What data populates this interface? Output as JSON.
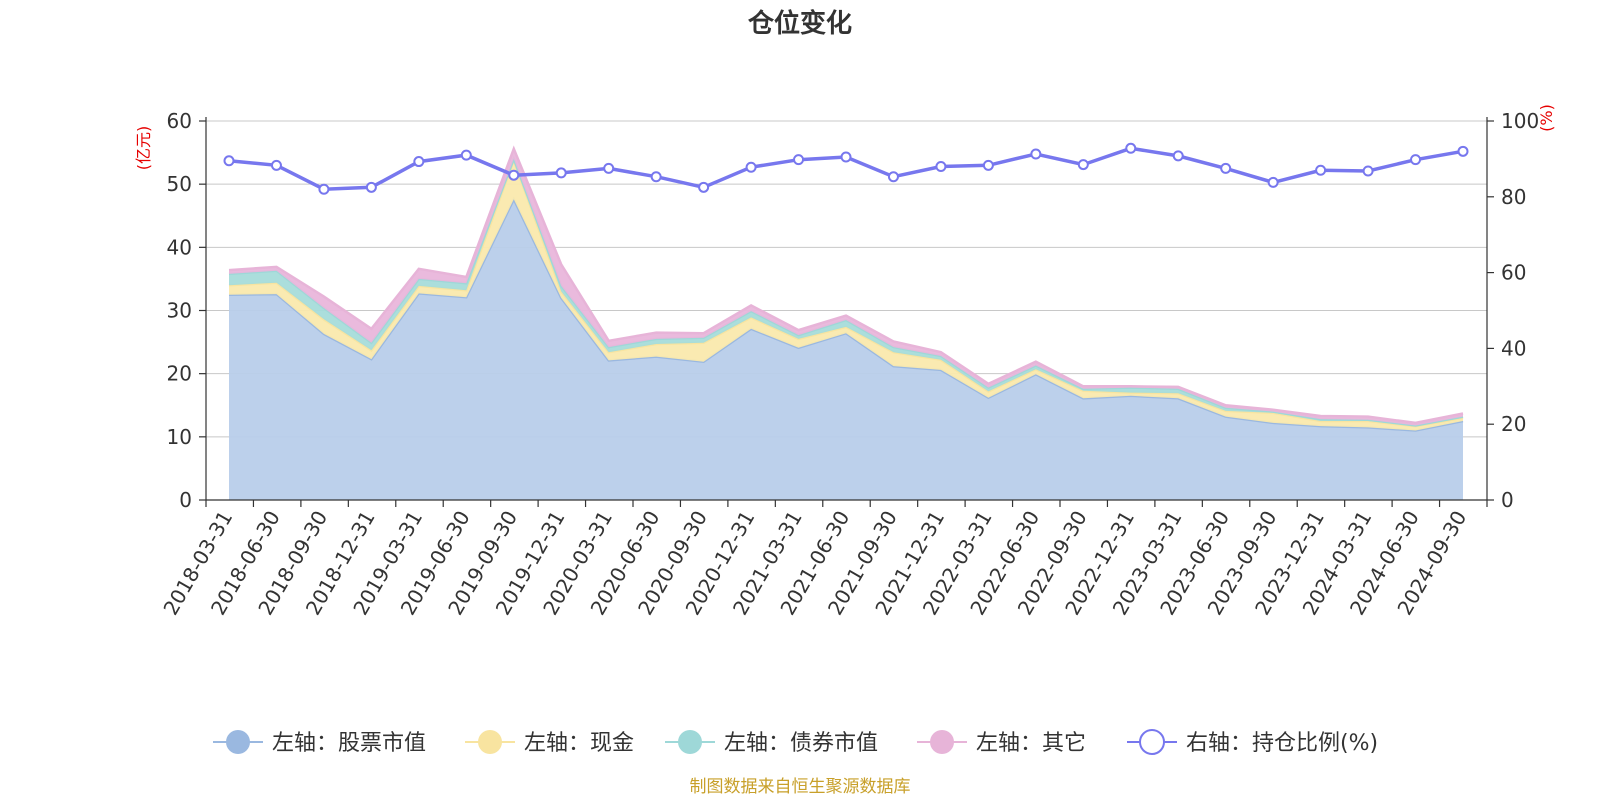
{
  "chart_data": {
    "type": "area",
    "title": "仓位变化",
    "left_axis_unit": "(亿元)",
    "right_axis_unit": "(%)",
    "left_ylim": [
      0,
      60
    ],
    "left_ticks": [
      0,
      10,
      20,
      30,
      40,
      50,
      60
    ],
    "right_ylim": [
      0,
      100
    ],
    "right_ticks": [
      0,
      20,
      40,
      60,
      80,
      100
    ],
    "categories": [
      "2018-03-31",
      "2018-06-30",
      "2018-09-30",
      "2018-12-31",
      "2019-03-31",
      "2019-06-30",
      "2019-09-30",
      "2019-12-31",
      "2020-03-31",
      "2020-06-30",
      "2020-09-30",
      "2020-12-31",
      "2021-03-31",
      "2021-06-30",
      "2021-09-30",
      "2021-12-31",
      "2022-03-31",
      "2022-06-30",
      "2022-09-30",
      "2022-12-31",
      "2023-03-31",
      "2023-06-30",
      "2023-09-30",
      "2023-12-31",
      "2024-03-31",
      "2024-06-30",
      "2024-09-30"
    ],
    "stacked_series": [
      {
        "name": "左轴：股票市值",
        "color": "#9ab8e0",
        "fill": "#b8cdea",
        "values": [
          32.5,
          32.6,
          26.3,
          22.3,
          32.7,
          32.1,
          47.6,
          32.0,
          22.1,
          22.7,
          21.9,
          27.1,
          24.1,
          26.4,
          21.2,
          20.6,
          16.2,
          19.9,
          16.1,
          16.5,
          16.1,
          13.2,
          12.2,
          11.7,
          11.5,
          11.0,
          12.5
        ]
      },
      {
        "name": "左轴：现金",
        "color": "#f8e4a0",
        "fill": "#fae9ad",
        "values": [
          1.5,
          1.8,
          2.3,
          1.4,
          1.2,
          1.1,
          6.2,
          1.0,
          1.3,
          2.0,
          3.0,
          1.8,
          1.4,
          1.0,
          2.2,
          1.6,
          1.0,
          0.8,
          1.2,
          0.5,
          0.8,
          0.9,
          1.6,
          0.8,
          1.0,
          0.7,
          0.5
        ]
      },
      {
        "name": "左轴：债券市值",
        "color": "#9ed8d8",
        "fill": "#a6dcda",
        "values": [
          1.8,
          1.9,
          1.8,
          1.2,
          1.1,
          1.1,
          0.2,
          0.9,
          0.8,
          0.8,
          0.8,
          1.0,
          0.6,
          1.1,
          0.8,
          0.6,
          0.6,
          0.6,
          0.3,
          0.8,
          0.7,
          0.5,
          0.2,
          0.3,
          0.2,
          0.1,
          0.2
        ]
      },
      {
        "name": "左轴：其它",
        "color": "#e7b4d8",
        "fill": "#e9b6db",
        "values": [
          0.6,
          0.6,
          1.8,
          2.2,
          1.6,
          1.0,
          1.6,
          3.4,
          1.0,
          1.0,
          0.7,
          0.9,
          0.8,
          0.7,
          0.9,
          0.6,
          0.6,
          0.6,
          0.4,
          0.2,
          0.3,
          0.4,
          0.3,
          0.5,
          0.5,
          0.4,
          0.5
        ]
      }
    ],
    "line_series": {
      "name": "右轴：持仓比例(%)",
      "color": "#7777ee",
      "values": [
        89.5,
        88.3,
        82.0,
        82.5,
        89.3,
        91.0,
        85.7,
        86.3,
        87.5,
        85.3,
        82.5,
        87.8,
        89.8,
        90.5,
        85.3,
        88.0,
        88.3,
        91.3,
        88.5,
        92.8,
        90.8,
        87.5,
        83.8,
        87.0,
        86.8,
        89.8,
        92.0
      ]
    },
    "source": "制图数据来自恒生聚源数据库"
  }
}
